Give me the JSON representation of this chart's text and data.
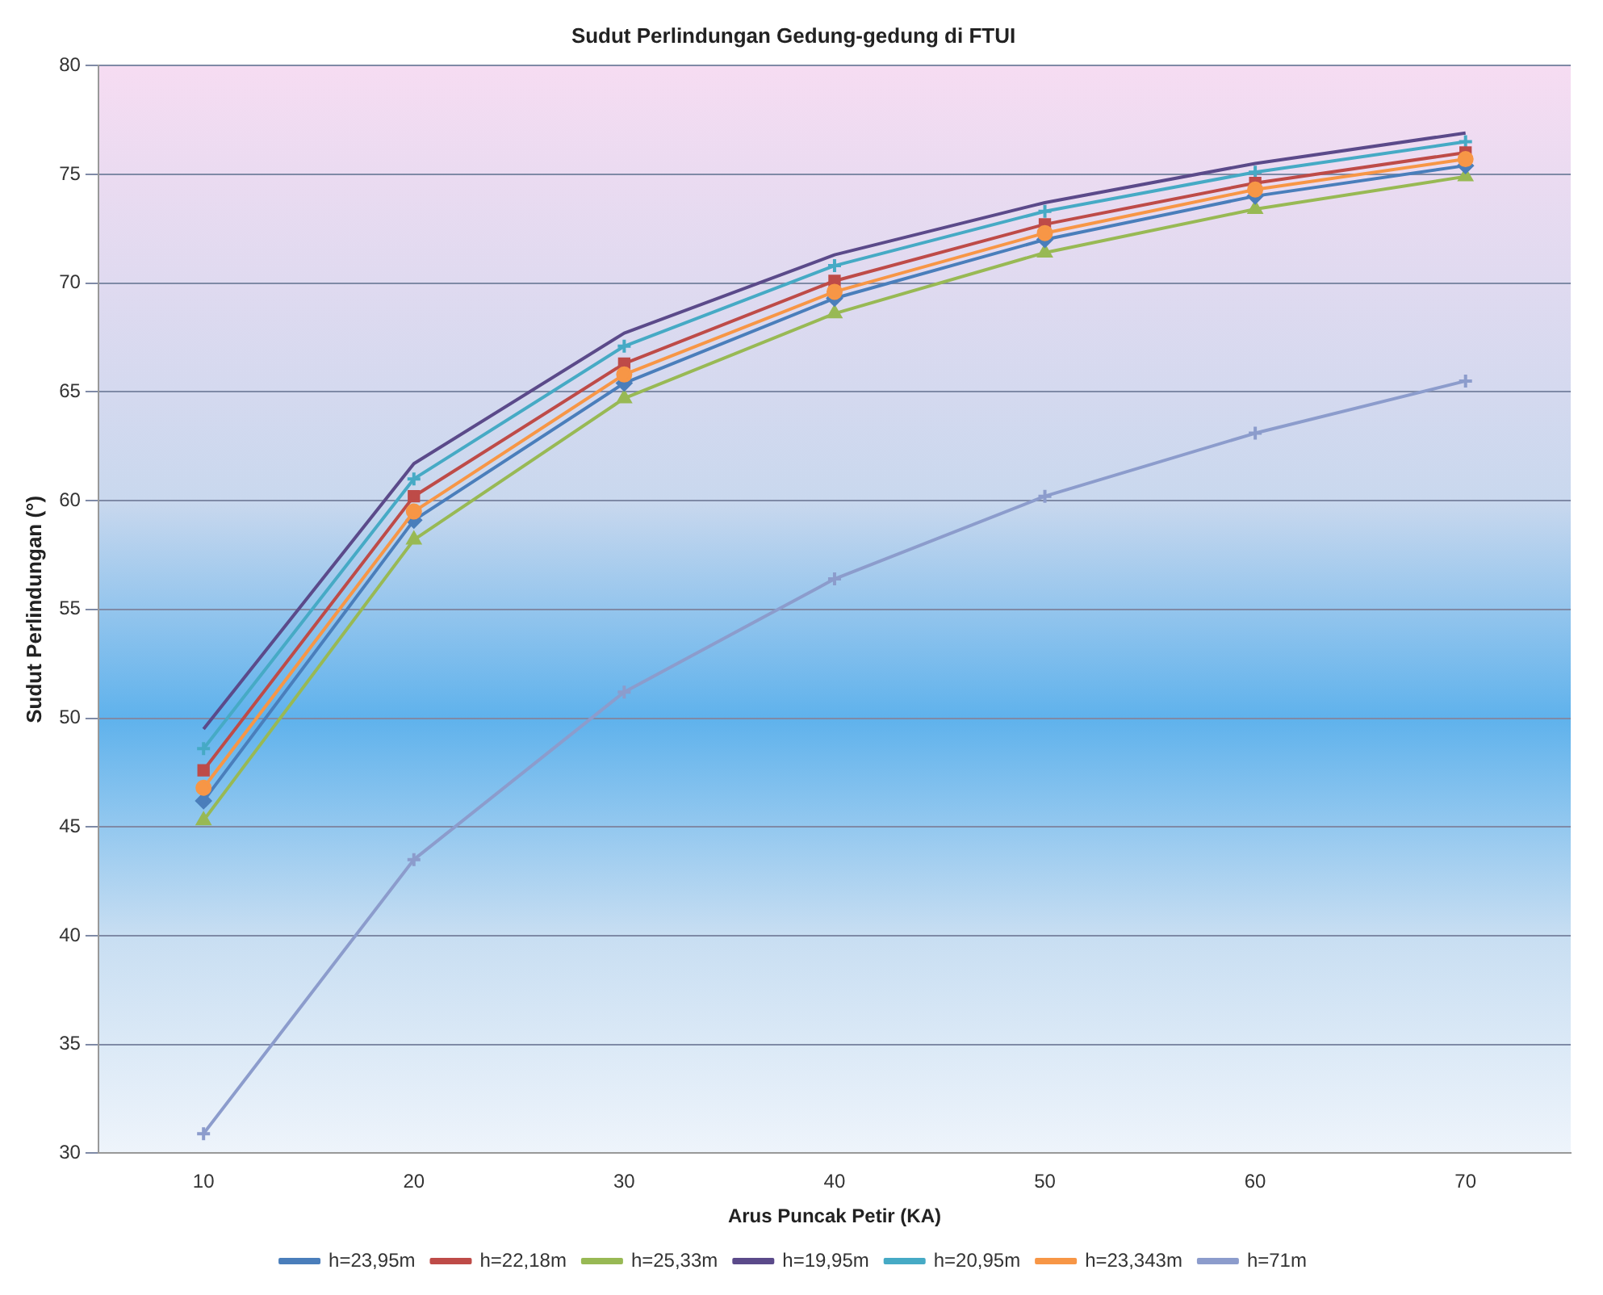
{
  "chart_data": {
    "type": "line",
    "title": "Sudut Perlindungan Gedung-gedung di FTUI",
    "xlabel": "Arus Puncak Petir (KA)",
    "ylabel": "Sudut Perlindungan (°)",
    "categories": [
      "10",
      "20",
      "30",
      "40",
      "50",
      "60",
      "70"
    ],
    "ylim": [
      30,
      80
    ],
    "yticks": [
      30,
      35,
      40,
      45,
      50,
      55,
      60,
      65,
      70,
      75,
      80
    ],
    "grid": "y",
    "legend": "bottom",
    "series": [
      {
        "name": "h=23,95m",
        "color": "#4a7ebb",
        "marker": "diamond",
        "values": [
          46.2,
          59.1,
          65.4,
          69.3,
          72.0,
          74.0,
          75.4
        ]
      },
      {
        "name": "h=22,18m",
        "color": "#be4b48",
        "marker": "square",
        "values": [
          47.6,
          60.2,
          66.3,
          70.1,
          72.7,
          74.6,
          76.0
        ]
      },
      {
        "name": "h=25,33m",
        "color": "#98b954",
        "marker": "triangle",
        "values": [
          45.3,
          58.2,
          64.7,
          68.6,
          71.4,
          73.4,
          74.9
        ]
      },
      {
        "name": "h=19,95m",
        "color": "#5b4a8a",
        "marker": "none",
        "values": [
          49.5,
          61.7,
          67.7,
          71.3,
          73.7,
          75.5,
          76.9
        ]
      },
      {
        "name": "h=20,95m",
        "color": "#46aac5",
        "marker": "cross",
        "values": [
          48.6,
          61.0,
          67.1,
          70.8,
          73.3,
          75.1,
          76.5
        ]
      },
      {
        "name": "h=23,343m",
        "color": "#f79646",
        "marker": "circle",
        "values": [
          46.8,
          59.5,
          65.8,
          69.6,
          72.3,
          74.3,
          75.7
        ]
      },
      {
        "name": "h=71m",
        "color": "#8c9ccc",
        "marker": "cross",
        "values": [
          30.9,
          43.5,
          51.2,
          56.4,
          60.2,
          63.1,
          65.5
        ]
      }
    ]
  }
}
